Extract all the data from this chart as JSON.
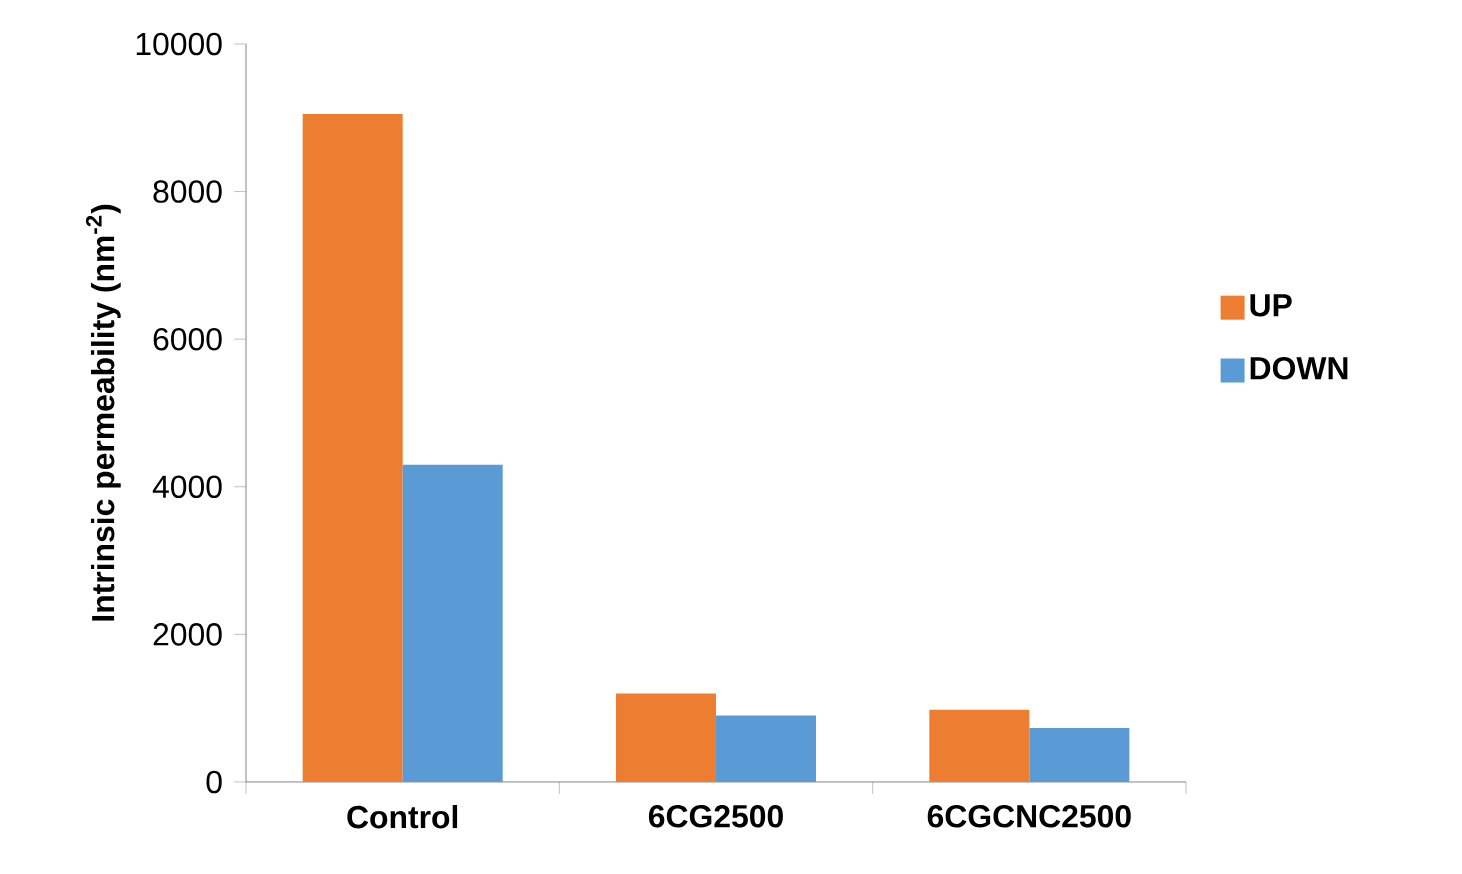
{
  "chart_data": {
    "type": "bar",
    "ylabel": "Intrinsic permeability (nm$^{-2}$)",
    "categories": [
      "Control",
      "6CG2500",
      "6CGCNC2500"
    ],
    "series": [
      {
        "name": "UP",
        "color": "#ed7d31",
        "values": [
          9050,
          1200,
          980
        ]
      },
      {
        "name": "DOWN",
        "color": "#5b9bd5",
        "values": [
          4300,
          900,
          730
        ]
      }
    ],
    "ylim": [
      0,
      10000
    ],
    "yticks": [
      0,
      2000,
      4000,
      6000,
      8000,
      10000
    ],
    "grid": false,
    "legend": "right"
  }
}
